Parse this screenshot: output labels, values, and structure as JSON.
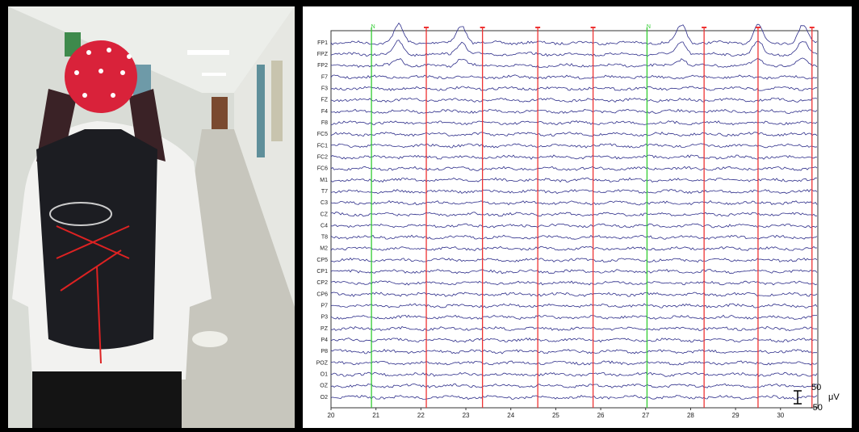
{
  "chart_data": {
    "type": "eeg",
    "channels": [
      "FP1",
      "FPZ",
      "FP2",
      "F7",
      "F3",
      "FZ",
      "F4",
      "F8",
      "FC5",
      "FC1",
      "FC2",
      "FC6",
      "M1",
      "T7",
      "C3",
      "CZ",
      "C4",
      "T8",
      "M2",
      "CP5",
      "CP1",
      "CP2",
      "CP6",
      "P7",
      "P3",
      "PZ",
      "P4",
      "P8",
      "POZ",
      "O1",
      "OZ",
      "O2"
    ],
    "xlim": [
      20,
      30.83
    ],
    "xticks": [
      20,
      21,
      22,
      23,
      24,
      25,
      26,
      27,
      28,
      29,
      30
    ],
    "events": [
      {
        "x": 20.9,
        "label": "N",
        "color": "#33cc33"
      },
      {
        "x": 22.12,
        "color": "#ee3333"
      },
      {
        "x": 23.37,
        "color": "#ee3333"
      },
      {
        "x": 24.6,
        "color": "#ee3333"
      },
      {
        "x": 25.83,
        "color": "#ee3333"
      },
      {
        "x": 27.03,
        "label": "N",
        "color": "#33cc33"
      },
      {
        "x": 28.3,
        "color": "#ee3333"
      },
      {
        "x": 29.5,
        "color": "#ee3333"
      },
      {
        "x": 30.7,
        "color": "#ee3333"
      }
    ],
    "scale_bar": {
      "top": 50,
      "bottom": -50,
      "unit": "μV"
    },
    "trace_color": "#2e2e8a"
  }
}
